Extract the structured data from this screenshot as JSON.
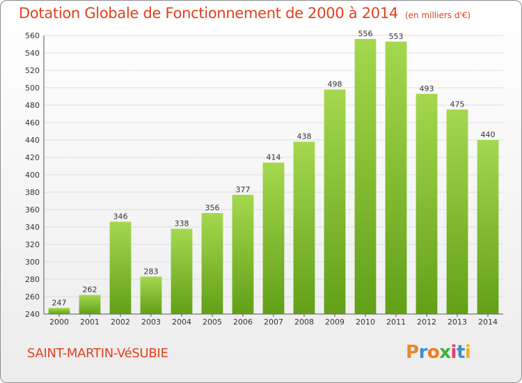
{
  "header": {
    "title": "Dotation Globale de Fonctionnement de 2000 à 2014",
    "unit": "(en milliers d'€)"
  },
  "footer": {
    "commune": "SAINT-MARTIN-VéSUBIE",
    "logo": "Proxiti",
    "logo_colors": [
      "#e8882a",
      "#3a8fd6",
      "#ef7b18",
      "#3fae3a",
      "#e24060",
      "#3a8fd6",
      "#f0b020"
    ]
  },
  "colors": {
    "title": "#e2401c",
    "bar_light": "#a4d84e",
    "bar_dark": "#62a018",
    "grid": "#dddddd",
    "axis": "#555555"
  },
  "chart_data": {
    "type": "bar",
    "categories": [
      "2000",
      "2001",
      "2002",
      "2003",
      "2004",
      "2005",
      "2006",
      "2007",
      "2008",
      "2009",
      "2010",
      "2011",
      "2012",
      "2013",
      "2014"
    ],
    "values": [
      247,
      262,
      346,
      283,
      338,
      356,
      377,
      414,
      438,
      498,
      556,
      553,
      493,
      475,
      440
    ],
    "ylim": [
      240,
      560
    ],
    "yticks": [
      240,
      260,
      280,
      300,
      320,
      340,
      360,
      380,
      400,
      420,
      440,
      460,
      480,
      500,
      520,
      540,
      560
    ],
    "grid": true,
    "data_labels": true,
    "legend": "none"
  }
}
